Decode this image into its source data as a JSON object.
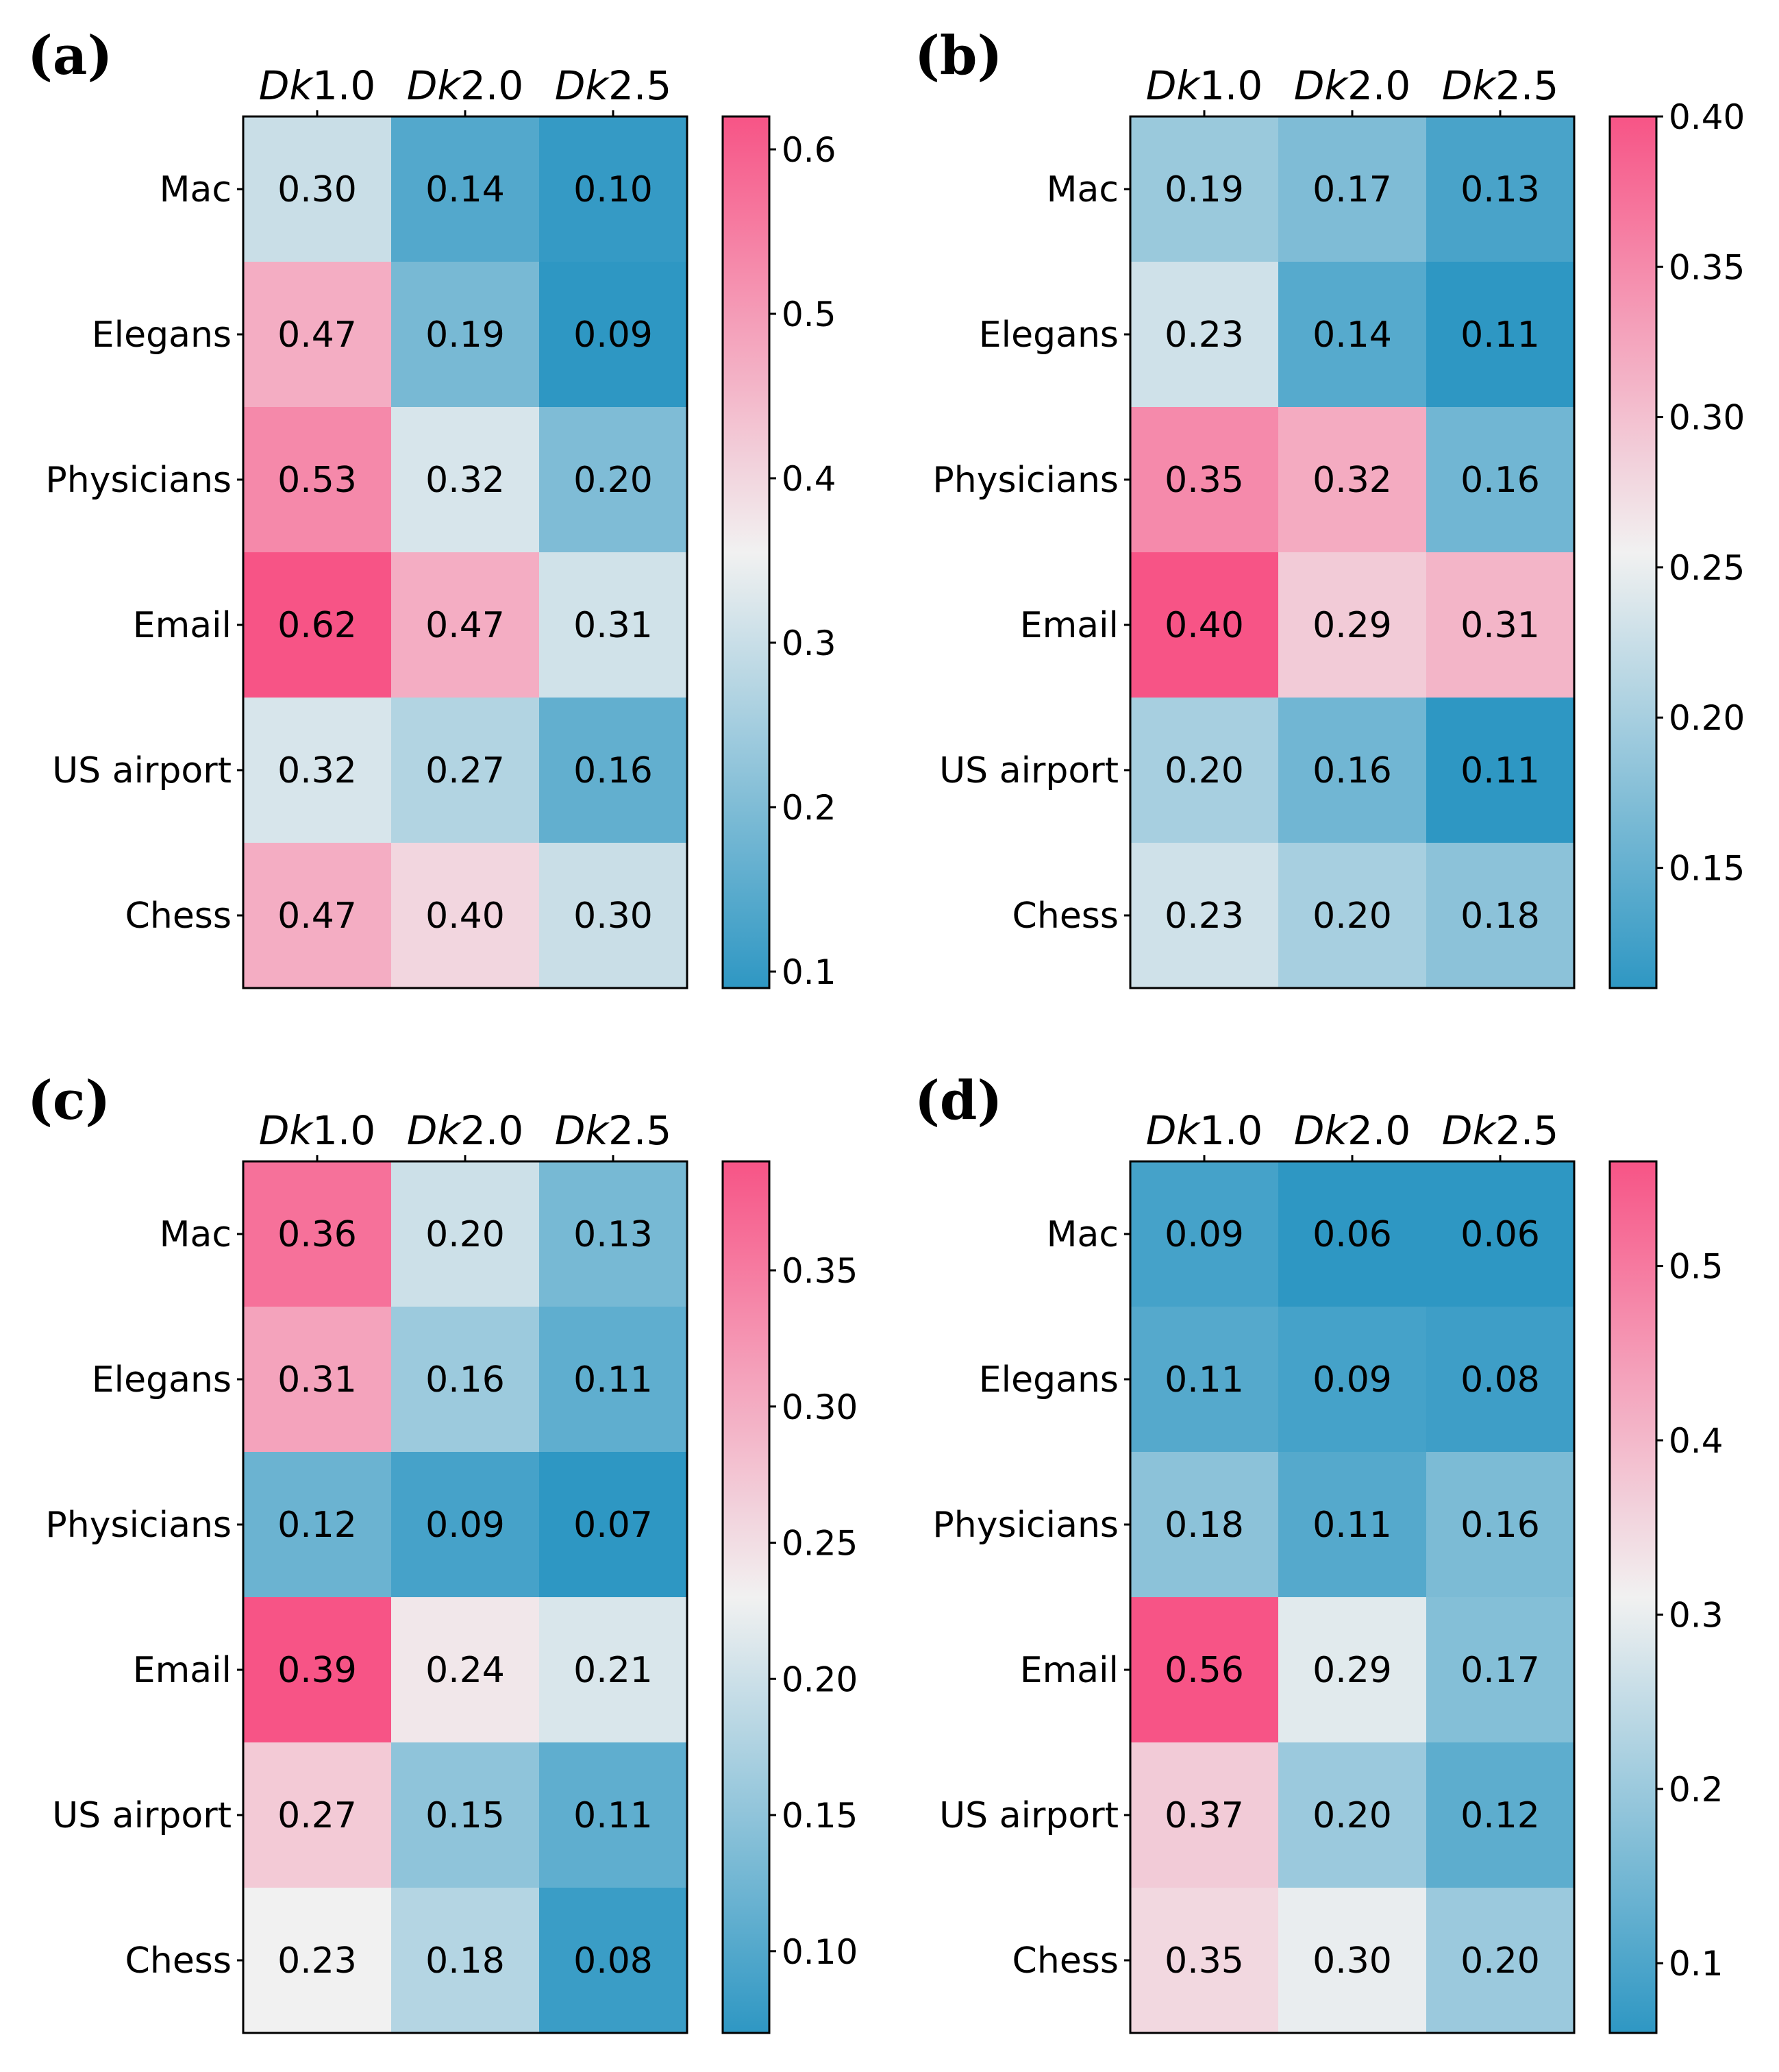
{
  "colors": {
    "low": "#2e97c3",
    "mid": "#f1f1f1",
    "high": "#f75486"
  },
  "chart_data": [
    {
      "type": "heatmap",
      "panel": "(a)",
      "col_prefix": [
        "Dk",
        "Dk",
        "Dk"
      ],
      "col_values": [
        "1.0",
        "2.0",
        "2.5"
      ],
      "columns": [
        "Dk1.0",
        "Dk2.0",
        "Dk2.5"
      ],
      "rows": [
        "Mac",
        "Elegans",
        "Physicians",
        "Email",
        "US airport",
        "Chess"
      ],
      "values": [
        [
          0.3,
          0.14,
          0.1
        ],
        [
          0.47,
          0.19,
          0.09
        ],
        [
          0.53,
          0.32,
          0.2
        ],
        [
          0.62,
          0.47,
          0.31
        ],
        [
          0.32,
          0.27,
          0.16
        ],
        [
          0.47,
          0.4,
          0.3
        ]
      ],
      "labels": [
        [
          "0.30",
          "0.14",
          "0.10"
        ],
        [
          "0.47",
          "0.19",
          "0.09"
        ],
        [
          "0.53",
          "0.32",
          "0.20"
        ],
        [
          "0.62",
          "0.47",
          "0.31"
        ],
        [
          "0.32",
          "0.27",
          "0.16"
        ],
        [
          "0.47",
          "0.40",
          "0.30"
        ]
      ],
      "colorbar": {
        "min": 0.09,
        "max": 0.62,
        "ticks": [
          0.1,
          0.2,
          0.3,
          0.4,
          0.5,
          0.6
        ],
        "tick_labels": [
          "0.1",
          "0.2",
          "0.3",
          "0.4",
          "0.5",
          "0.6"
        ]
      }
    },
    {
      "type": "heatmap",
      "panel": "(b)",
      "col_prefix": [
        "Dk",
        "Dk",
        "Dk"
      ],
      "col_values": [
        "1.0",
        "2.0",
        "2.5"
      ],
      "columns": [
        "Dk1.0",
        "Dk2.0",
        "Dk2.5"
      ],
      "rows": [
        "Mac",
        "Elegans",
        "Physicians",
        "Email",
        "US airport",
        "Chess"
      ],
      "values": [
        [
          0.19,
          0.17,
          0.13
        ],
        [
          0.23,
          0.14,
          0.11
        ],
        [
          0.35,
          0.32,
          0.16
        ],
        [
          0.4,
          0.29,
          0.31
        ],
        [
          0.2,
          0.16,
          0.11
        ],
        [
          0.23,
          0.2,
          0.18
        ]
      ],
      "labels": [
        [
          "0.19",
          "0.17",
          "0.13"
        ],
        [
          "0.23",
          "0.14",
          "0.11"
        ],
        [
          "0.35",
          "0.32",
          "0.16"
        ],
        [
          "0.40",
          "0.29",
          "0.31"
        ],
        [
          "0.20",
          "0.16",
          "0.11"
        ],
        [
          "0.23",
          "0.20",
          "0.18"
        ]
      ],
      "colorbar": {
        "min": 0.11,
        "max": 0.4,
        "ticks": [
          0.15,
          0.2,
          0.25,
          0.3,
          0.35,
          0.4
        ],
        "tick_labels": [
          "0.15",
          "0.20",
          "0.25",
          "0.30",
          "0.35",
          "0.40"
        ]
      }
    },
    {
      "type": "heatmap",
      "panel": "(c)",
      "col_prefix": [
        "Dk",
        "Dk",
        "Dk"
      ],
      "col_values": [
        "1.0",
        "2.0",
        "2.5"
      ],
      "columns": [
        "Dk1.0",
        "Dk2.0",
        "Dk2.5"
      ],
      "rows": [
        "Mac",
        "Elegans",
        "Physicians",
        "Email",
        "US airport",
        "Chess"
      ],
      "values": [
        [
          0.36,
          0.2,
          0.13
        ],
        [
          0.31,
          0.16,
          0.11
        ],
        [
          0.12,
          0.09,
          0.07
        ],
        [
          0.39,
          0.24,
          0.21
        ],
        [
          0.27,
          0.15,
          0.11
        ],
        [
          0.23,
          0.18,
          0.08
        ]
      ],
      "labels": [
        [
          "0.36",
          "0.20",
          "0.13"
        ],
        [
          "0.31",
          "0.16",
          "0.11"
        ],
        [
          "0.12",
          "0.09",
          "0.07"
        ],
        [
          "0.39",
          "0.24",
          "0.21"
        ],
        [
          "0.27",
          "0.15",
          "0.11"
        ],
        [
          "0.23",
          "0.18",
          "0.08"
        ]
      ],
      "colorbar": {
        "min": 0.07,
        "max": 0.39,
        "ticks": [
          0.1,
          0.15,
          0.2,
          0.25,
          0.3,
          0.35
        ],
        "tick_labels": [
          "0.10",
          "0.15",
          "0.20",
          "0.25",
          "0.30",
          "0.35"
        ]
      }
    },
    {
      "type": "heatmap",
      "panel": "(d)",
      "col_prefix": [
        "Dk",
        "Dk",
        "Dk"
      ],
      "col_values": [
        "1.0",
        "2.0",
        "2.5"
      ],
      "columns": [
        "Dk1.0",
        "Dk2.0",
        "Dk2.5"
      ],
      "rows": [
        "Mac",
        "Elegans",
        "Physicians",
        "Email",
        "US airport",
        "Chess"
      ],
      "values": [
        [
          0.09,
          0.06,
          0.06
        ],
        [
          0.11,
          0.09,
          0.08
        ],
        [
          0.18,
          0.11,
          0.16
        ],
        [
          0.56,
          0.29,
          0.17
        ],
        [
          0.37,
          0.2,
          0.12
        ],
        [
          0.35,
          0.3,
          0.2
        ]
      ],
      "labels": [
        [
          "0.09",
          "0.06",
          "0.06"
        ],
        [
          "0.11",
          "0.09",
          "0.08"
        ],
        [
          "0.18",
          "0.11",
          "0.16"
        ],
        [
          "0.56",
          "0.29",
          "0.17"
        ],
        [
          "0.37",
          "0.20",
          "0.12"
        ],
        [
          "0.35",
          "0.30",
          "0.20"
        ]
      ],
      "colorbar": {
        "min": 0.06,
        "max": 0.56,
        "ticks": [
          0.1,
          0.2,
          0.3,
          0.4,
          0.5
        ],
        "tick_labels": [
          "0.1",
          "0.2",
          "0.3",
          "0.4",
          "0.5"
        ]
      }
    }
  ]
}
